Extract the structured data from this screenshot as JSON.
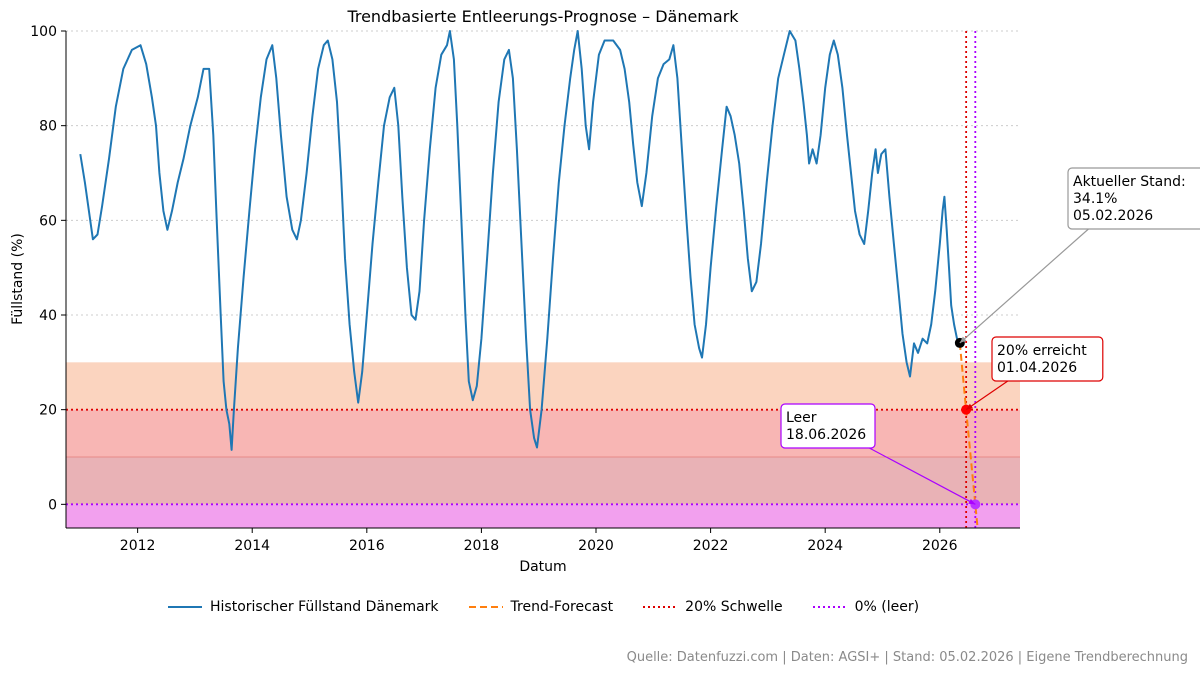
{
  "chart_data": {
    "type": "line",
    "title": "Trendbasierte Entleerungs-Prognose – Dänemark",
    "xlabel": "Datum",
    "ylabel": "Füllstand (%)",
    "xlim": [
      2010.75,
      2027.4
    ],
    "ylim": [
      -5,
      100
    ],
    "x_ticks": [
      2012,
      2014,
      2016,
      2018,
      2020,
      2022,
      2024,
      2026
    ],
    "y_ticks": [
      0,
      20,
      40,
      60,
      80,
      100
    ],
    "grid": "horizontal dotted",
    "zones": [
      {
        "from": 20,
        "to": 30,
        "color": "#fbd4bf"
      },
      {
        "from": 10,
        "to": 20,
        "color": "#f8b6b4"
      },
      {
        "from": 0,
        "to": 10,
        "color": "#e9b2b6"
      },
      {
        "from": -5,
        "to": 0,
        "color": "#f2a0ee"
      }
    ],
    "series": [
      {
        "name": "Historischer Füllstand Dänemark",
        "style": "solid",
        "color": "#1f77b4",
        "points": [
          [
            2011.0,
            74
          ],
          [
            2011.08,
            68
          ],
          [
            2011.15,
            62
          ],
          [
            2011.22,
            56
          ],
          [
            2011.3,
            57
          ],
          [
            2011.38,
            63
          ],
          [
            2011.5,
            73
          ],
          [
            2011.62,
            84
          ],
          [
            2011.75,
            92
          ],
          [
            2011.9,
            96
          ],
          [
            2012.05,
            97
          ],
          [
            2012.15,
            93
          ],
          [
            2012.25,
            86
          ],
          [
            2012.32,
            80
          ],
          [
            2012.38,
            70
          ],
          [
            2012.45,
            62
          ],
          [
            2012.52,
            58
          ],
          [
            2012.6,
            62
          ],
          [
            2012.7,
            68
          ],
          [
            2012.8,
            73
          ],
          [
            2012.92,
            80
          ],
          [
            2013.05,
            86
          ],
          [
            2013.15,
            92
          ],
          [
            2013.25,
            92
          ],
          [
            2013.32,
            78
          ],
          [
            2013.38,
            60
          ],
          [
            2013.45,
            40
          ],
          [
            2013.5,
            26
          ],
          [
            2013.55,
            20
          ],
          [
            2013.6,
            17
          ],
          [
            2013.64,
            11.5
          ],
          [
            2013.68,
            20
          ],
          [
            2013.75,
            33
          ],
          [
            2013.85,
            48
          ],
          [
            2013.95,
            62
          ],
          [
            2014.05,
            75
          ],
          [
            2014.15,
            86
          ],
          [
            2014.25,
            94
          ],
          [
            2014.35,
            97
          ],
          [
            2014.42,
            90
          ],
          [
            2014.5,
            78
          ],
          [
            2014.6,
            65
          ],
          [
            2014.7,
            58
          ],
          [
            2014.78,
            56
          ],
          [
            2014.85,
            60
          ],
          [
            2014.95,
            70
          ],
          [
            2015.05,
            82
          ],
          [
            2015.15,
            92
          ],
          [
            2015.25,
            97
          ],
          [
            2015.32,
            98
          ],
          [
            2015.4,
            94
          ],
          [
            2015.48,
            85
          ],
          [
            2015.55,
            70
          ],
          [
            2015.62,
            52
          ],
          [
            2015.7,
            38
          ],
          [
            2015.78,
            28
          ],
          [
            2015.85,
            21.5
          ],
          [
            2015.92,
            28
          ],
          [
            2016.0,
            40
          ],
          [
            2016.1,
            55
          ],
          [
            2016.2,
            68
          ],
          [
            2016.3,
            80
          ],
          [
            2016.4,
            86
          ],
          [
            2016.48,
            88
          ],
          [
            2016.55,
            80
          ],
          [
            2016.62,
            65
          ],
          [
            2016.7,
            50
          ],
          [
            2016.78,
            40
          ],
          [
            2016.85,
            39
          ],
          [
            2016.92,
            45
          ],
          [
            2017.0,
            60
          ],
          [
            2017.1,
            75
          ],
          [
            2017.2,
            88
          ],
          [
            2017.3,
            95
          ],
          [
            2017.4,
            97
          ],
          [
            2017.45,
            100
          ],
          [
            2017.52,
            94
          ],
          [
            2017.58,
            80
          ],
          [
            2017.65,
            60
          ],
          [
            2017.72,
            40
          ],
          [
            2017.78,
            26
          ],
          [
            2017.85,
            22
          ],
          [
            2017.92,
            25
          ],
          [
            2018.0,
            35
          ],
          [
            2018.1,
            52
          ],
          [
            2018.2,
            70
          ],
          [
            2018.3,
            85
          ],
          [
            2018.4,
            94
          ],
          [
            2018.48,
            96
          ],
          [
            2018.55,
            90
          ],
          [
            2018.62,
            75
          ],
          [
            2018.7,
            55
          ],
          [
            2018.78,
            35
          ],
          [
            2018.85,
            20
          ],
          [
            2018.92,
            14
          ],
          [
            2018.97,
            12
          ],
          [
            2019.05,
            20
          ],
          [
            2019.15,
            35
          ],
          [
            2019.25,
            52
          ],
          [
            2019.35,
            68
          ],
          [
            2019.45,
            80
          ],
          [
            2019.55,
            90
          ],
          [
            2019.62,
            96
          ],
          [
            2019.68,
            100
          ],
          [
            2019.75,
            92
          ],
          [
            2019.82,
            80
          ],
          [
            2019.88,
            75
          ],
          [
            2019.95,
            85
          ],
          [
            2020.05,
            95
          ],
          [
            2020.15,
            98
          ],
          [
            2020.3,
            98
          ],
          [
            2020.42,
            96
          ],
          [
            2020.5,
            92
          ],
          [
            2020.58,
            85
          ],
          [
            2020.65,
            76
          ],
          [
            2020.72,
            68
          ],
          [
            2020.8,
            63
          ],
          [
            2020.88,
            70
          ],
          [
            2020.98,
            82
          ],
          [
            2021.08,
            90
          ],
          [
            2021.18,
            93
          ],
          [
            2021.28,
            94
          ],
          [
            2021.35,
            97
          ],
          [
            2021.42,
            90
          ],
          [
            2021.5,
            75
          ],
          [
            2021.58,
            60
          ],
          [
            2021.65,
            48
          ],
          [
            2021.72,
            38
          ],
          [
            2021.8,
            33
          ],
          [
            2021.85,
            31
          ],
          [
            2021.92,
            38
          ],
          [
            2022.0,
            50
          ],
          [
            2022.1,
            63
          ],
          [
            2022.2,
            75
          ],
          [
            2022.28,
            84
          ],
          [
            2022.35,
            82
          ],
          [
            2022.42,
            78
          ],
          [
            2022.5,
            72
          ],
          [
            2022.58,
            62
          ],
          [
            2022.65,
            52
          ],
          [
            2022.72,
            45
          ],
          [
            2022.8,
            47
          ],
          [
            2022.88,
            55
          ],
          [
            2022.98,
            68
          ],
          [
            2023.08,
            80
          ],
          [
            2023.18,
            90
          ],
          [
            2023.28,
            95
          ],
          [
            2023.38,
            100
          ],
          [
            2023.48,
            98
          ],
          [
            2023.55,
            92
          ],
          [
            2023.62,
            85
          ],
          [
            2023.68,
            78
          ],
          [
            2023.72,
            72
          ],
          [
            2023.78,
            75
          ],
          [
            2023.85,
            72
          ],
          [
            2023.92,
            78
          ],
          [
            2024.0,
            88
          ],
          [
            2024.08,
            95
          ],
          [
            2024.15,
            98
          ],
          [
            2024.22,
            95
          ],
          [
            2024.3,
            88
          ],
          [
            2024.38,
            78
          ],
          [
            2024.45,
            70
          ],
          [
            2024.52,
            62
          ],
          [
            2024.6,
            57
          ],
          [
            2024.68,
            55
          ],
          [
            2024.75,
            62
          ],
          [
            2024.82,
            70
          ],
          [
            2024.88,
            75
          ],
          [
            2024.92,
            70
          ],
          [
            2024.98,
            74
          ],
          [
            2025.05,
            75
          ],
          [
            2025.12,
            65
          ],
          [
            2025.2,
            55
          ],
          [
            2025.28,
            45
          ],
          [
            2025.35,
            36
          ],
          [
            2025.42,
            30
          ],
          [
            2025.48,
            27
          ],
          [
            2025.55,
            34
          ],
          [
            2025.62,
            32
          ],
          [
            2025.7,
            35
          ],
          [
            2025.78,
            34
          ],
          [
            2025.85,
            38
          ],
          [
            2025.92,
            45
          ],
          [
            2026.0,
            55
          ],
          [
            2026.05,
            62
          ],
          [
            2026.08,
            65
          ],
          [
            2026.12,
            58
          ],
          [
            2026.16,
            50
          ],
          [
            2026.2,
            42
          ],
          [
            2026.25,
            38
          ],
          [
            2026.3,
            35
          ],
          [
            2026.35,
            34.1
          ]
        ]
      },
      {
        "name": "Trend-Forecast",
        "style": "dashed",
        "color": "#ff7f0e",
        "points": [
          [
            2026.35,
            34.1
          ],
          [
            2026.46,
            20
          ],
          [
            2026.62,
            0
          ],
          [
            2026.66,
            -5
          ]
        ]
      }
    ],
    "reference_lines": [
      {
        "name": "20% Schwelle",
        "orientation": "both",
        "y": 20,
        "x": 2026.46,
        "color": "#dd0000",
        "style": "dotted"
      },
      {
        "name": "0% (leer)",
        "orientation": "both",
        "y": 0,
        "x": 2026.62,
        "color": "#aa00ff",
        "style": "dotted"
      }
    ],
    "markers": [
      {
        "x": 2026.35,
        "y": 34.1,
        "color": "#000000"
      },
      {
        "x": 2026.46,
        "y": 20,
        "color": "#ff0000"
      },
      {
        "x": 2026.62,
        "y": 0,
        "color": "#bb33ff"
      }
    ],
    "annotations": [
      {
        "lines": [
          "Aktueller Stand:",
          "34.1%",
          "05.02.2026"
        ],
        "target_x": 2026.35,
        "target_y": 34.1,
        "color": "#999999"
      },
      {
        "lines": [
          "20% erreicht",
          "01.04.2026"
        ],
        "target_x": 2026.46,
        "target_y": 20,
        "color": "#dd0000"
      },
      {
        "lines": [
          "Leer",
          "18.06.2026"
        ],
        "target_x": 2026.62,
        "target_y": 0,
        "color": "#aa00ff"
      }
    ]
  },
  "legend": {
    "items": [
      {
        "label": "Historischer Füllstand Dänemark",
        "color": "#1f77b4",
        "style": "solid"
      },
      {
        "label": "Trend-Forecast",
        "color": "#ff7f0e",
        "style": "dashed"
      },
      {
        "label": "20% Schwelle",
        "color": "#dd0000",
        "style": "dotted"
      },
      {
        "label": "0% (leer)",
        "color": "#aa00ff",
        "style": "dotted"
      }
    ]
  },
  "footer": {
    "source": "Quelle: Datenfuzzi.com | Daten: AGSI+ | Stand: 05.02.2026 | Eigene Trendberechnung"
  }
}
